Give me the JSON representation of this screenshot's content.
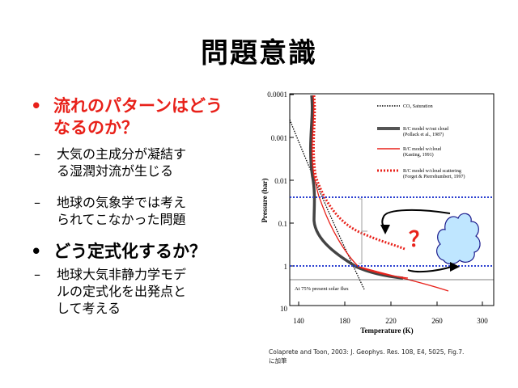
{
  "slide": {
    "title": "問題意識",
    "bullets": [
      {
        "text_lines": [
          "流れのパターンはどう",
          "なるのか？"
        ],
        "color": "#e8211a",
        "subs": [
          {
            "lines": [
              "大気の主成分が凝結す",
              "る湿潤対流が生じる"
            ]
          },
          {
            "lines": [
              "地球の気象学では考え",
              "られてこなかった問題"
            ]
          }
        ]
      },
      {
        "text_lines": [
          "どう定式化するか？"
        ],
        "color": "#000000",
        "subs": [
          {
            "lines": [
              "地球大気非静力学モデ",
              "ルの定式化を出発点と",
              "して考える"
            ]
          }
        ]
      }
    ],
    "bullet_symbol": "•",
    "dash_symbol": "–",
    "citation_lines": [
      "Colaprete and Toon, 2003: J. Geophys. Res. 108, E4, 5025, Fig.7.",
      "に加筆"
    ]
  },
  "figure": {
    "ylabel": "Pressure (bar)",
    "xlabel": "Temperature (K)",
    "y_ticks": [
      "0.0001",
      "0.001",
      "0.01",
      "0.1",
      "1",
      "10"
    ],
    "x_ticks": [
      "140",
      "180",
      "220",
      "260",
      "300"
    ],
    "legend": [
      {
        "label": "CO₂ Saturation",
        "sub": "",
        "style": "dotted-black"
      },
      {
        "label": "R/C model w/out cloud",
        "sub": "(Pollack et al., 1987)",
        "style": "thick-gray"
      },
      {
        "label": "R/C model w/cloud",
        "sub": "(Kasting, 1991)",
        "style": "solid-red"
      },
      {
        "label": "R/C model w/cloud scattering",
        "sub": "(Forget & Pierrehumbert, 1997)",
        "style": "dashed-red"
      }
    ],
    "flux_note": "At 75% present solar flux",
    "question_mark": "？",
    "colors": {
      "red": "#e8211a",
      "blue": "#2a3fd0",
      "cloud_fill": "#bfe6ff",
      "cloud_stroke": "#1a1a8c"
    }
  }
}
